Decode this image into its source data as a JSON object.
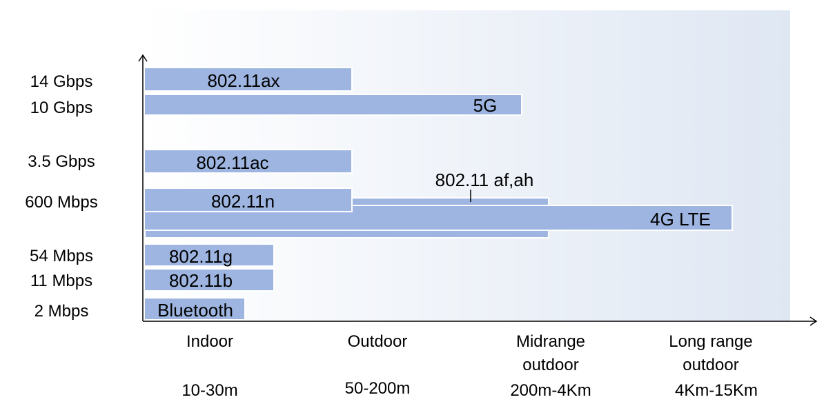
{
  "chart_data": {
    "type": "bar",
    "orientation": "horizontal",
    "title": "",
    "y_categories": [
      "14 Gbps",
      "10 Gbps",
      "3.5 Gbps",
      "600 Mbps",
      "54 Mbps",
      "11 Mbps",
      "2 Mbps"
    ],
    "x_categories": [
      {
        "lines": [
          "Indoor"
        ],
        "range": "10-30m"
      },
      {
        "lines": [
          "Outdoor"
        ],
        "range": "50-200m"
      },
      {
        "lines": [
          "Midrange",
          "outdoor"
        ],
        "range": "200m-4Km"
      },
      {
        "lines": [
          "Long range",
          "outdoor"
        ],
        "range": "4Km-15Km"
      }
    ],
    "series": [
      {
        "name": "802.11ax",
        "rate": "14 Gbps",
        "reach": "Outdoor"
      },
      {
        "name": "5G",
        "rate": "10 Gbps",
        "reach": "Midrange outdoor"
      },
      {
        "name": "802.11ac",
        "rate": "3.5 Gbps",
        "reach": "Outdoor"
      },
      {
        "name": "802.11n",
        "rate": "600 Mbps",
        "reach": "Outdoor"
      },
      {
        "name": "802.11 af,ah",
        "rate": "600 Mbps",
        "reach": "Midrange outdoor"
      },
      {
        "name": "4G LTE",
        "rate": "600 Mbps",
        "reach": "Long range outdoor"
      },
      {
        "name": "802.11g",
        "rate": "54 Mbps",
        "reach": "Indoor"
      },
      {
        "name": "802.11b",
        "rate": "11 Mbps",
        "reach": "Indoor"
      },
      {
        "name": "Bluetooth",
        "rate": "2 Mbps",
        "reach": "Indoor"
      }
    ],
    "grid": false,
    "legend": "none",
    "colors": {
      "bar_fill": "#9db5e0",
      "bar_edge": "#ffffff",
      "axis": "#000000",
      "background_left": "#ffffff",
      "background_right": "#dfe7f3"
    }
  }
}
